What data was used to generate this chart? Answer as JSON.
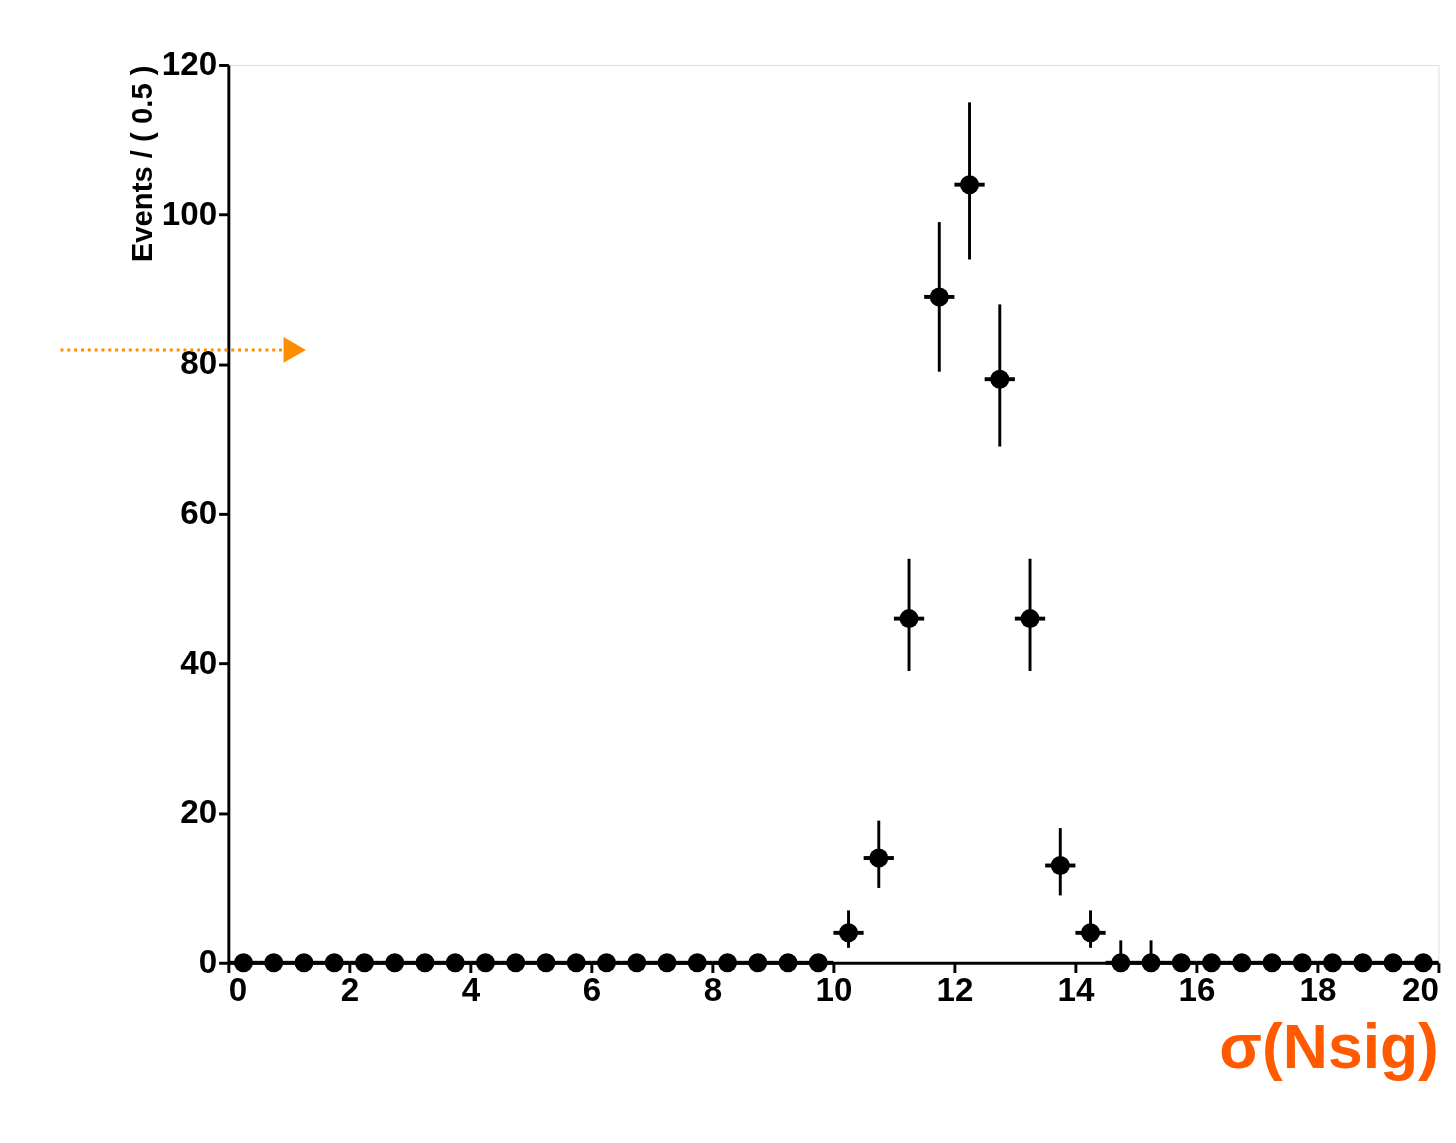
{
  "chart_data": {
    "type": "scatter",
    "xlabel": "σ(Nsig)",
    "ylabel": "Events / ( 0.5 )",
    "x": [
      0.25,
      0.75,
      1.25,
      1.75,
      2.25,
      2.75,
      3.25,
      3.75,
      4.25,
      4.75,
      5.25,
      5.75,
      6.25,
      6.75,
      7.25,
      7.75,
      8.25,
      8.75,
      9.25,
      9.75,
      10.25,
      10.75,
      11.25,
      11.75,
      12.25,
      12.75,
      13.25,
      13.75,
      14.25,
      14.75,
      15.25,
      15.75,
      16.25,
      16.75,
      17.25,
      17.75,
      18.25,
      18.75,
      19.25,
      19.75
    ],
    "series": [
      {
        "color": "#000000",
        "values": [
          0,
          0,
          0,
          0,
          0,
          0,
          0,
          0,
          0,
          0,
          0,
          0,
          0,
          0,
          0,
          0,
          0,
          0,
          0,
          0,
          4,
          14,
          46,
          89,
          104,
          78,
          46,
          13,
          4,
          0,
          0,
          0,
          0,
          0,
          0,
          0,
          0,
          0,
          0,
          0
        ],
        "errors": [
          null,
          null,
          null,
          null,
          null,
          null,
          null,
          null,
          null,
          null,
          null,
          null,
          null,
          null,
          null,
          null,
          null,
          null,
          null,
          null,
          [
            2,
            7
          ],
          [
            10,
            19
          ],
          [
            39,
            54
          ],
          [
            79,
            99
          ],
          [
            94,
            115
          ],
          [
            69,
            88
          ],
          [
            39,
            54
          ],
          [
            9,
            18
          ],
          [
            2,
            7
          ],
          [
            0,
            3
          ],
          [
            0,
            3
          ],
          null,
          null,
          null,
          null,
          null,
          null,
          null,
          null,
          null
        ],
        "xerrors": [
          0.25,
          0.25,
          0.25,
          0.25,
          0.25,
          0.25,
          0.25,
          0.25,
          0.25,
          0.25,
          0.25,
          0.25,
          0.25,
          0.25,
          0.25,
          0.25,
          0.25,
          0.25,
          0.25,
          0.25,
          0.25,
          0.25,
          0.25,
          0.25,
          0.25,
          0.25,
          0.25,
          0.25,
          0.25,
          0.25,
          0.25,
          0.25,
          0.25,
          0.25,
          0.25,
          0.25,
          0.25,
          0.25,
          0.25,
          0.25
        ]
      }
    ],
    "xlim": [
      0,
      20
    ],
    "xticks": [
      0,
      2,
      4,
      6,
      8,
      10,
      12,
      14,
      16,
      18,
      20
    ],
    "ylim": [
      0,
      120
    ],
    "yticks": [
      0,
      20,
      40,
      60,
      80,
      100,
      120
    ],
    "marker": "circle",
    "grid": false
  }
}
